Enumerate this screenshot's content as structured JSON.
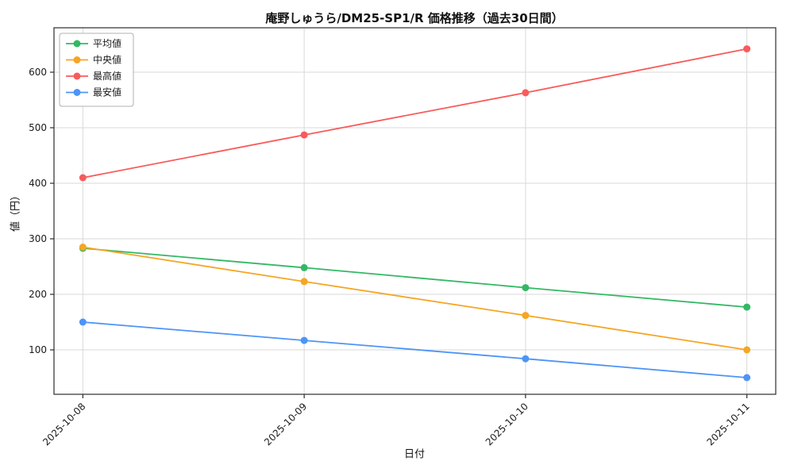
{
  "chart_data": {
    "type": "line",
    "title": "庵野しゅうら/DM25-SP1/R 価格推移（過去30日間）",
    "xlabel": "日付",
    "ylabel": "値（円）",
    "categories": [
      "2025-10-08",
      "2025-10-09",
      "2025-10-10",
      "2025-10-11"
    ],
    "series": [
      {
        "name": "平均値",
        "color": "#33b864",
        "values": [
          283,
          248,
          212,
          177
        ]
      },
      {
        "name": "中央値",
        "color": "#f5a623",
        "values": [
          285,
          223,
          162,
          100
        ]
      },
      {
        "name": "最高値",
        "color": "#f85b5b",
        "values": [
          410,
          487,
          563,
          642
        ]
      },
      {
        "name": "最安値",
        "color": "#4d94f7",
        "values": [
          150,
          117,
          84,
          50
        ]
      }
    ],
    "yticks": [
      100,
      200,
      300,
      400,
      500,
      600
    ],
    "ylim": [
      20,
      680
    ],
    "grid": true,
    "legend_position": "upper left",
    "grid_color": "#d9d9d9",
    "spine_color": "#2b2b2b",
    "text_color": "#1a1a1a"
  }
}
